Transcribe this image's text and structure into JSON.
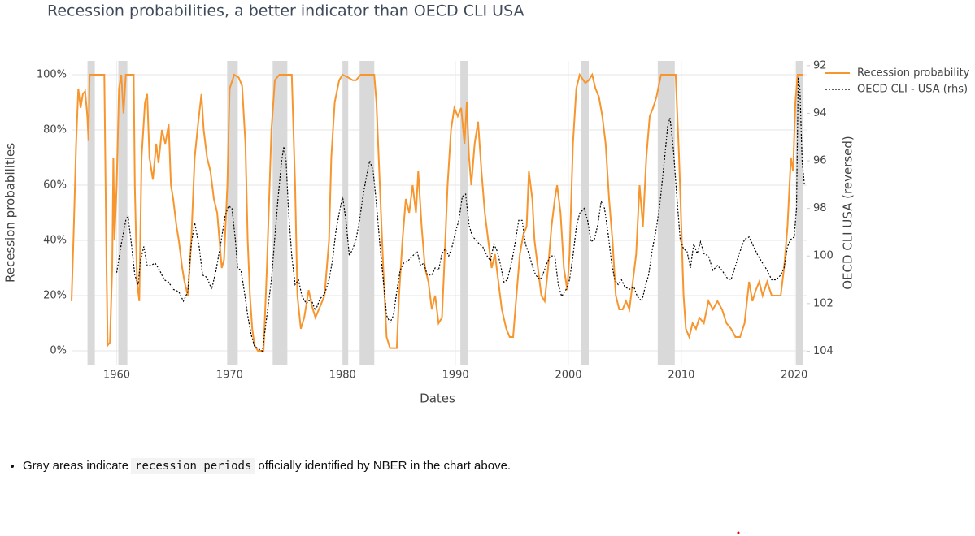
{
  "chart_data": {
    "type": "line",
    "title": "Recession probabilities, a better indicator than OECD CLI USA",
    "x_label": "Dates",
    "y_label": "Recession probabilities",
    "y2_label": "OECD CLI USA (reversed)",
    "xlim": [
      1956.0,
      2021.1
    ],
    "xticks": [
      1960,
      1970,
      1980,
      1990,
      2000,
      2010,
      2020
    ],
    "ylim": [
      -5.3,
      105
    ],
    "yticks": [
      {
        "value": 0,
        "label": "0%"
      },
      {
        "value": 20,
        "label": "20%"
      },
      {
        "value": 40,
        "label": "40%"
      },
      {
        "value": 60,
        "label": "60%"
      },
      {
        "value": 80,
        "label": "80%"
      },
      {
        "value": 100,
        "label": "100%"
      }
    ],
    "y2lim": [
      104.6,
      91.8
    ],
    "y2ticks": [
      92,
      94,
      96,
      98,
      100,
      102,
      104
    ],
    "grid": true,
    "legend_position": "top-right",
    "shade_color": "#d9d9d9",
    "shaded_periods": [
      [
        1957.41,
        1958.06
      ],
      [
        1960.14,
        1960.94
      ],
      [
        1969.78,
        1970.72
      ],
      [
        1973.81,
        1975.11
      ],
      [
        1980.0,
        1980.5
      ],
      [
        1981.51,
        1982.81
      ],
      [
        1990.43,
        1991.08
      ],
      [
        2001.15,
        2001.8
      ],
      [
        2007.91,
        2009.42
      ],
      [
        2020.14,
        2020.79
      ]
    ],
    "series": [
      {
        "name": "Recession probability",
        "color": "#f7962e",
        "dash": "solid",
        "x": [
          1956.0,
          1956.2,
          1956.4,
          1956.6,
          1956.8,
          1957.0,
          1957.2,
          1957.4,
          1957.5,
          1957.6,
          1958.5,
          1958.9,
          1959.1,
          1959.2,
          1959.4,
          1959.6,
          1959.7,
          1959.8,
          1960.0,
          1960.2,
          1960.4,
          1960.6,
          1960.8,
          1961.5,
          1961.6,
          1961.8,
          1962.0,
          1962.2,
          1962.5,
          1962.7,
          1962.9,
          1963.2,
          1963.5,
          1963.7,
          1964.0,
          1964.3,
          1964.6,
          1964.8,
          1965.0,
          1965.3,
          1965.5,
          1965.8,
          1966.0,
          1966.3,
          1966.6,
          1966.9,
          1967.2,
          1967.5,
          1967.7,
          1968.0,
          1968.3,
          1968.6,
          1968.9,
          1969.1,
          1969.3,
          1969.5,
          1969.8,
          1970.0,
          1970.4,
          1970.8,
          1971.1,
          1971.4,
          1971.6,
          1971.8,
          1972.0,
          1972.2,
          1972.5,
          1973.0,
          1973.3,
          1973.7,
          1974.0,
          1974.4,
          1975.5,
          1975.8,
          1976.0,
          1976.3,
          1976.6,
          1977.0,
          1977.3,
          1977.6,
          1978.0,
          1978.4,
          1978.8,
          1979.0,
          1979.3,
          1979.7,
          1980.0,
          1980.5,
          1980.9,
          1981.2,
          1981.6,
          1982.8,
          1983.0,
          1983.3,
          1983.6,
          1983.9,
          1984.2,
          1984.8,
          1985.0,
          1985.3,
          1985.6,
          1985.9,
          1986.2,
          1986.5,
          1986.7,
          1987.0,
          1987.3,
          1987.6,
          1987.9,
          1988.2,
          1988.5,
          1988.8,
          1989.0,
          1989.3,
          1989.6,
          1989.9,
          1990.2,
          1990.5,
          1990.8,
          1991.0,
          1991.2,
          1991.4,
          1991.7,
          1992.0,
          1992.3,
          1992.6,
          1992.9,
          1993.2,
          1993.5,
          1993.8,
          1994.1,
          1994.5,
          1994.8,
          1995.1,
          1995.4,
          1995.7,
          1996.0,
          1996.3,
          1996.5,
          1996.8,
          1997.0,
          1997.3,
          1997.6,
          1997.9,
          1998.2,
          1998.5,
          1998.8,
          1999.0,
          1999.3,
          1999.6,
          1999.9,
          2000.1,
          2000.4,
          2000.7,
          2001.0,
          2001.5,
          2001.8,
          2002.1,
          2002.4,
          2002.7,
          2003.0,
          2003.3,
          2003.6,
          2003.9,
          2004.2,
          2004.5,
          2004.8,
          2005.1,
          2005.4,
          2005.7,
          2006.0,
          2006.3,
          2006.6,
          2006.9,
          2007.2,
          2007.5,
          2007.8,
          2008.2,
          2009.5,
          2009.8,
          2010.0,
          2010.2,
          2010.4,
          2010.7,
          2011.0,
          2011.3,
          2011.6,
          2012.0,
          2012.4,
          2012.8,
          2013.2,
          2013.6,
          2014.0,
          2014.4,
          2014.8,
          2015.2,
          2015.6,
          2016.0,
          2016.3,
          2016.6,
          2016.9,
          2017.2,
          2017.6,
          2018.0,
          2018.4,
          2018.8,
          2019.1,
          2019.4,
          2019.7,
          2019.9,
          2020.1,
          2020.3,
          2020.8
        ],
        "values": [
          18,
          45,
          75,
          95,
          88,
          93,
          94,
          85,
          76,
          100,
          100,
          100,
          30,
          2,
          3,
          30,
          70,
          40,
          60,
          95,
          100,
          86,
          100,
          100,
          60,
          25,
          18,
          70,
          90,
          93,
          70,
          62,
          75,
          68,
          80,
          75,
          82,
          60,
          55,
          45,
          40,
          30,
          25,
          20,
          40,
          70,
          82,
          93,
          80,
          70,
          65,
          55,
          50,
          40,
          30,
          33,
          60,
          95,
          100,
          99,
          96,
          75,
          40,
          20,
          8,
          2,
          0,
          0,
          30,
          80,
          98,
          100,
          100,
          60,
          20,
          8,
          12,
          22,
          16,
          12,
          16,
          20,
          40,
          70,
          90,
          98,
          100,
          99,
          98,
          98,
          100,
          100,
          90,
          60,
          30,
          5,
          1,
          1,
          20,
          40,
          55,
          50,
          60,
          50,
          65,
          45,
          30,
          25,
          15,
          20,
          10,
          12,
          30,
          60,
          80,
          88,
          85,
          88,
          75,
          90,
          70,
          60,
          75,
          83,
          65,
          50,
          40,
          30,
          35,
          25,
          15,
          8,
          5,
          5,
          20,
          35,
          42,
          45,
          65,
          55,
          40,
          30,
          20,
          18,
          30,
          45,
          55,
          60,
          50,
          30,
          22,
          35,
          75,
          95,
          100,
          97,
          98,
          100,
          95,
          92,
          85,
          75,
          55,
          40,
          20,
          15,
          15,
          18,
          15,
          25,
          35,
          60,
          45,
          70,
          85,
          88,
          92,
          100,
          100,
          70,
          45,
          20,
          8,
          5,
          10,
          8,
          12,
          10,
          18,
          15,
          18,
          15,
          10,
          8,
          5,
          5,
          10,
          25,
          18,
          22,
          25,
          20,
          25,
          20,
          20,
          20,
          30,
          45,
          70,
          65,
          90,
          100,
          100
        ]
      },
      {
        "name": "OECD CLI - USA (rhs)",
        "color": "#000000",
        "dash": "dotted",
        "axis": "y2",
        "x": [
          1960.0,
          1960.4,
          1960.8,
          1961.0,
          1961.3,
          1961.6,
          1961.9,
          1962.1,
          1962.4,
          1962.7,
          1963.0,
          1963.4,
          1963.8,
          1964.2,
          1964.6,
          1965.0,
          1965.5,
          1965.9,
          1966.3,
          1966.6,
          1966.9,
          1967.3,
          1967.6,
          1968.0,
          1968.4,
          1968.8,
          1969.2,
          1969.6,
          1969.9,
          1970.2,
          1970.5,
          1970.7,
          1971.0,
          1971.3,
          1971.6,
          1971.9,
          1972.2,
          1972.9,
          1973.3,
          1973.7,
          1974.0,
          1974.3,
          1974.6,
          1974.8,
          1975.0,
          1975.2,
          1975.5,
          1975.8,
          1976.1,
          1976.4,
          1976.8,
          1977.2,
          1977.6,
          1978.0,
          1978.4,
          1978.8,
          1979.1,
          1979.4,
          1979.7,
          1980.0,
          1980.3,
          1980.6,
          1980.9,
          1981.2,
          1981.5,
          1981.8,
          1982.1,
          1982.4,
          1982.7,
          1983.0,
          1983.3,
          1983.6,
          1983.9,
          1984.2,
          1984.5,
          1984.8,
          1985.1,
          1985.4,
          1985.8,
          1986.2,
          1986.6,
          1986.9,
          1987.2,
          1987.5,
          1987.9,
          1988.2,
          1988.5,
          1988.8,
          1989.1,
          1989.4,
          1989.7,
          1990.0,
          1990.3,
          1990.6,
          1990.9,
          1991.2,
          1991.5,
          1991.8,
          1992.1,
          1992.4,
          1992.8,
          1993.1,
          1993.4,
          1993.7,
          1994.0,
          1994.3,
          1994.6,
          1995.0,
          1995.3,
          1995.6,
          1995.9,
          1996.2,
          1996.5,
          1996.8,
          1997.1,
          1997.5,
          1997.8,
          1998.1,
          1998.4,
          1998.8,
          1999.1,
          1999.4,
          1999.8,
          2000.1,
          2000.4,
          2000.7,
          2001.0,
          2001.4,
          2001.7,
          2002.0,
          2002.3,
          2002.6,
          2002.9,
          2003.2,
          2003.5,
          2003.8,
          2004.1,
          2004.4,
          2004.7,
          2005.0,
          2005.4,
          2005.8,
          2006.1,
          2006.5,
          2006.8,
          2007.1,
          2007.4,
          2007.8,
          2008.1,
          2008.5,
          2008.8,
          2009.0,
          2009.3,
          2009.6,
          2009.9,
          2010.2,
          2010.5,
          2010.8,
          2011.1,
          2011.4,
          2011.7,
          2012.0,
          2012.4,
          2012.8,
          2013.2,
          2013.6,
          2014.0,
          2014.4,
          2014.8,
          2015.2,
          2015.6,
          2016.0,
          2016.4,
          2016.8,
          2017.2,
          2017.6,
          2018.0,
          2018.4,
          2018.8,
          2019.1,
          2019.4,
          2019.7,
          2020.0,
          2020.2,
          2020.35,
          2020.5,
          2020.7,
          2020.9
        ],
        "values": [
          100.7,
          99.5,
          98.5,
          98.3,
          99.5,
          100.8,
          101.2,
          100.2,
          99.6,
          100.4,
          100.4,
          100.3,
          100.6,
          101.0,
          101.1,
          101.4,
          101.5,
          101.9,
          101.5,
          99.5,
          98.6,
          99.6,
          100.8,
          100.9,
          101.4,
          100.6,
          99.5,
          98.3,
          97.9,
          98.0,
          99.3,
          100.5,
          100.6,
          101.5,
          102.5,
          103.3,
          103.8,
          104.0,
          102.5,
          101.0,
          99.2,
          97.5,
          96.0,
          95.4,
          96.0,
          98.0,
          100.0,
          101.2,
          101.0,
          101.7,
          102.0,
          101.8,
          102.3,
          101.8,
          101.6,
          101.0,
          100.2,
          99.0,
          98.2,
          97.5,
          98.5,
          100.0,
          99.7,
          99.3,
          98.5,
          97.5,
          96.7,
          96.0,
          96.4,
          97.8,
          99.5,
          101.0,
          102.5,
          102.8,
          102.5,
          101.5,
          100.6,
          100.3,
          100.2,
          100.0,
          99.8,
          100.4,
          100.3,
          100.8,
          100.8,
          100.5,
          100.6,
          99.9,
          99.7,
          100.0,
          99.6,
          99.0,
          98.5,
          97.5,
          97.4,
          98.7,
          99.2,
          99.3,
          99.5,
          99.6,
          100.0,
          100.2,
          99.5,
          99.8,
          100.4,
          101.1,
          101.0,
          100.2,
          99.4,
          98.5,
          98.5,
          99.5,
          99.9,
          100.4,
          100.8,
          101.0,
          100.7,
          100.3,
          100.0,
          100.0,
          101.2,
          101.7,
          101.4,
          101.0,
          100.0,
          98.8,
          98.2,
          98.0,
          98.5,
          99.4,
          99.3,
          98.7,
          97.7,
          98.0,
          99.0,
          100.2,
          101.0,
          101.2,
          101.0,
          101.3,
          101.4,
          101.3,
          101.7,
          101.9,
          101.3,
          100.8,
          99.8,
          98.8,
          97.8,
          96.0,
          94.5,
          94.2,
          95.5,
          97.5,
          99.3,
          99.7,
          99.8,
          100.5,
          99.5,
          99.9,
          99.4,
          99.9,
          100.0,
          100.6,
          100.4,
          100.6,
          100.9,
          101.0,
          100.4,
          99.8,
          99.3,
          99.2,
          99.6,
          100.0,
          100.3,
          100.6,
          101.0,
          101.0,
          100.8,
          100.5,
          99.6,
          99.3,
          99.2,
          98.0,
          92.5,
          93.0,
          96.0,
          97.0
        ]
      }
    ]
  },
  "note": {
    "before": "Gray areas indicate",
    "code": "recession periods",
    "after": "officially identified by NBER in the chart above."
  }
}
